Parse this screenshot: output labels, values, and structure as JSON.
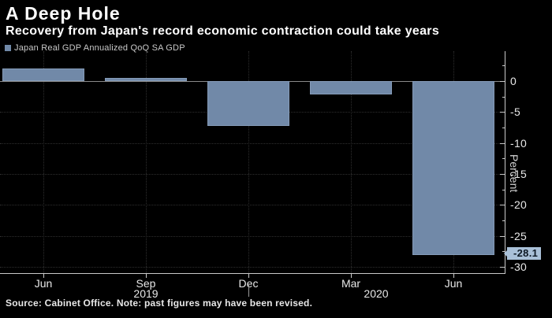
{
  "header": {
    "title": "A Deep Hole",
    "subtitle": "Recovery from Japan's record economic contraction could take years"
  },
  "legend": {
    "label": "Japan Real GDP Annualized QoQ SA GDP",
    "swatch_color": "#7189a8"
  },
  "footer": {
    "source_note": "Source: Cabinet Office. Note: past figures may have been revised."
  },
  "chart_data": {
    "type": "bar",
    "title": "A Deep Hole",
    "subtitle": "Recovery from Japan's record economic contraction could take years",
    "series_name": "Japan Real GDP Annualized QoQ SA GDP",
    "categories": [
      "Jun",
      "Sep",
      "Dec",
      "Mar",
      "Jun"
    ],
    "values": [
      2.0,
      0.5,
      -7.3,
      -2.2,
      -28.1
    ],
    "year_labels": [
      {
        "text": "2019",
        "tick_index": 1
      },
      {
        "text": "2020",
        "tick_index": 3
      }
    ],
    "year_separator_tick_index": 2,
    "ylabel": "Percent",
    "yticks": [
      0,
      -5,
      -10,
      -15,
      -20,
      -25,
      -30
    ],
    "ytick_labels": [
      "0",
      "-5",
      "-10",
      "-15",
      "-20",
      "-25",
      "-30"
    ],
    "minor_tick_step": 2.5,
    "ylim": [
      4.8,
      -31
    ],
    "grid": true,
    "legend_position": "top-left",
    "axis_side": "right",
    "bar_color": "#7189a8",
    "background_color": "#000000",
    "annotation": {
      "label": "-28.1",
      "value": -28.1,
      "bg_color": "#a9c0d8",
      "text_color": "#0d1824"
    }
  }
}
